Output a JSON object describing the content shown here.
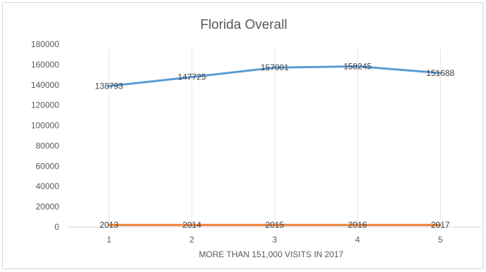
{
  "chart_data": {
    "type": "line",
    "title": "Florida Overall",
    "xlabel": "MORE THAN 151,000 VISITS IN 2017",
    "ylabel": "",
    "categories": [
      "1",
      "2",
      "3",
      "4",
      "5"
    ],
    "ylim": [
      0,
      180000
    ],
    "yticks": [
      0,
      20000,
      40000,
      60000,
      80000,
      100000,
      120000,
      140000,
      160000,
      180000
    ],
    "grid": "vertical",
    "legend": "none",
    "series": [
      {
        "values": [
          138793,
          147725,
          157001,
          158245,
          151688
        ],
        "color": "#5b9bd5",
        "labels": [
          "138793",
          "147725",
          "157001",
          "158245",
          "151688"
        ]
      },
      {
        "values": [
          2013,
          2014,
          2015,
          2016,
          2017
        ],
        "color": "#ed7d31",
        "labels": [
          "2013",
          "2014",
          "2015",
          "2016",
          "2017"
        ]
      }
    ]
  }
}
